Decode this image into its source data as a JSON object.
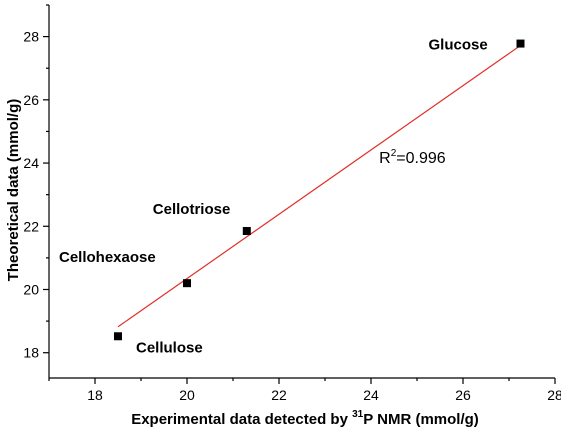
{
  "chart_data": {
    "type": "scatter",
    "title": "",
    "xlabel": {
      "pre": "Experimental data detected by ",
      "sup": "31",
      "post": "P NMR (mmol/g)"
    },
    "ylabel": "Theoretical data (mmol/g)",
    "xlim": [
      17,
      28
    ],
    "ylim": [
      17.2,
      29
    ],
    "xticks": [
      18,
      20,
      22,
      24,
      26,
      28
    ],
    "yticks": [
      18,
      20,
      22,
      24,
      26,
      28
    ],
    "points": [
      {
        "name": "Glucose",
        "x": 27.25,
        "y": 27.78
      },
      {
        "name": "Cellotriose",
        "x": 21.3,
        "y": 21.85
      },
      {
        "name": "Cellohexaose",
        "x": 20.0,
        "y": 20.2
      },
      {
        "name": "Cellulose",
        "x": 18.5,
        "y": 18.52
      }
    ],
    "fit": {
      "x1": 18.5,
      "y1": 18.82,
      "x2": 27.25,
      "y2": 27.72
    },
    "annotation": {
      "base": "R",
      "sup": "2",
      "rest": "=0.996",
      "x": 24.9,
      "y": 24.0
    },
    "colors": {
      "fit_line": "#e0302a",
      "points": "#000000"
    }
  }
}
